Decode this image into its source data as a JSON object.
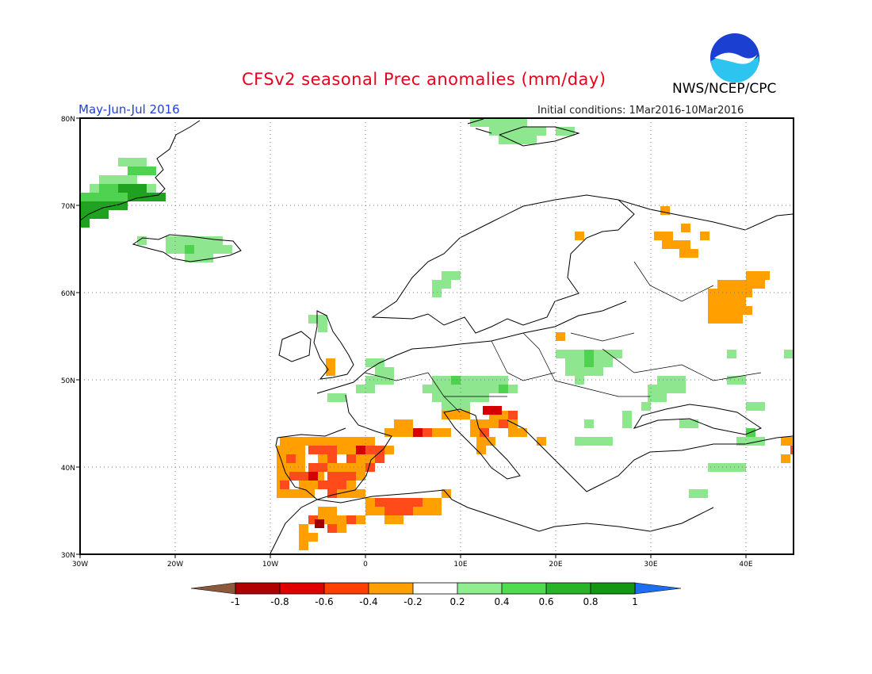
{
  "header": {
    "title": "CFSv2 seasonal Prec anomalies (mm/day)",
    "period": "May-Jun-Jul 2016",
    "initial_conditions": "Initial conditions: 1Mar2016-10Mar2016",
    "organization": "NWS/NCEP/CPC",
    "logo_text": "NOAA"
  },
  "map": {
    "lat_labels": [
      "80N",
      "70N",
      "60N",
      "50N",
      "40N",
      "30N"
    ],
    "lon_labels": [
      "30W",
      "20W",
      "10W",
      "0",
      "10E",
      "20E",
      "30E",
      "40E"
    ],
    "lon_range": [
      -30,
      45
    ],
    "lat_range": [
      30,
      80
    ],
    "grid": "dotted"
  },
  "legend": {
    "labels": [
      "-1",
      "-0.8",
      "-0.6",
      "-0.4",
      "-0.2",
      "0.2",
      "0.4",
      "0.6",
      "0.8",
      "1"
    ],
    "colors": [
      "#8b5a3c",
      "#b00000",
      "#e00000",
      "#ff4000",
      "#ffa000",
      "#ffffff",
      "#90ee90",
      "#50dc50",
      "#28b428",
      "#149614",
      "#1e6ef0"
    ]
  },
  "chart_data": {
    "type": "heatmap",
    "title": "CFSv2 seasonal Prec anomalies (mm/day)",
    "units": "mm/day",
    "regions": [
      {
        "area": "Greenland SE coast",
        "lon": [
          -30,
          -21
        ],
        "lat": [
          68,
          75
        ],
        "level": "0.4 to 0.8"
      },
      {
        "area": "Svalbard",
        "lon": [
          14,
          26
        ],
        "lat": [
          77,
          80
        ],
        "level": "0.2 to 0.4"
      },
      {
        "area": "Iceland",
        "lon": [
          -24,
          -14
        ],
        "lat": [
          64,
          66
        ],
        "level": "0.2 to 0.4"
      },
      {
        "area": "Iberia",
        "lon": [
          -9,
          3
        ],
        "lat": [
          37,
          43
        ],
        "level": "-0.2 to -0.6"
      },
      {
        "area": "Morocco/Algeria",
        "lon": [
          -7,
          9
        ],
        "lat": [
          33,
          37
        ],
        "level": "-0.2 to -0.6"
      },
      {
        "area": "Italy/Adriatic",
        "lon": [
          8,
          19
        ],
        "lat": [
          41,
          47
        ],
        "level": "-0.2 to -0.6"
      },
      {
        "area": "Central Europe",
        "lon": [
          2,
          17
        ],
        "lat": [
          47,
          52
        ],
        "level": "0.2 to 0.4"
      },
      {
        "area": "Poland/Ukraine",
        "lon": [
          20,
          27
        ],
        "lat": [
          50,
          54
        ],
        "level": "0.2 to 0.4"
      },
      {
        "area": "Western Russia",
        "lon": [
          36,
          43
        ],
        "lat": [
          57,
          62
        ],
        "level": "-0.2 to -0.4"
      },
      {
        "area": "Kola region",
        "lon": [
          30,
          38
        ],
        "lat": [
          64,
          69
        ],
        "level": "-0.2 to -0.4"
      }
    ]
  }
}
